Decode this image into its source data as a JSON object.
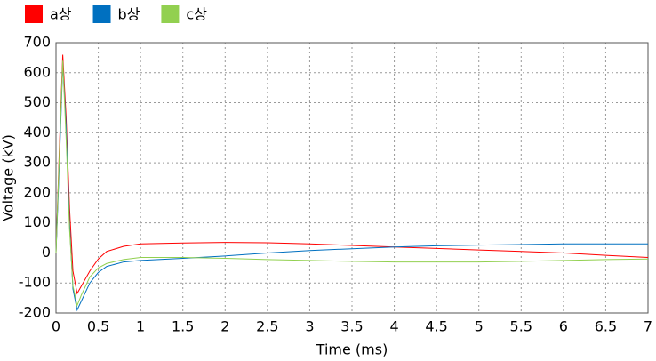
{
  "chart_data": {
    "type": "line",
    "x_label": "Time (ms)",
    "y_label": "Voltage (kV)",
    "x": [
      0,
      0.04,
      0.08,
      0.12,
      0.16,
      0.2,
      0.25,
      0.3,
      0.4,
      0.5,
      0.6,
      0.8,
      1,
      1.5,
      2,
      2.5,
      3,
      3.5,
      4,
      4.5,
      5,
      5.5,
      6,
      6.5,
      7
    ],
    "series": [
      {
        "name": "a상",
        "color": "#ff0000",
        "values": [
          0,
          350,
          660,
          450,
          150,
          -60,
          -135,
          -110,
          -60,
          -20,
          5,
          22,
          30,
          33,
          35,
          34,
          30,
          25,
          20,
          15,
          10,
          5,
          0,
          -8,
          -15
        ]
      },
      {
        "name": "b상",
        "color": "#0070c0",
        "values": [
          0,
          300,
          630,
          420,
          100,
          -120,
          -190,
          -160,
          -100,
          -65,
          -45,
          -30,
          -25,
          -18,
          -10,
          0,
          8,
          14,
          20,
          24,
          26,
          28,
          30,
          30,
          30
        ]
      },
      {
        "name": "c상",
        "color": "#92d050",
        "values": [
          0,
          330,
          640,
          380,
          80,
          -110,
          -175,
          -140,
          -80,
          -50,
          -35,
          -22,
          -15,
          -15,
          -18,
          -22,
          -25,
          -28,
          -30,
          -30,
          -30,
          -28,
          -25,
          -22,
          -20
        ]
      }
    ],
    "xlim": [
      0,
      7
    ],
    "xticks": [
      0,
      0.5,
      1,
      1.5,
      2,
      2.5,
      3,
      3.5,
      4,
      4.5,
      5,
      5.5,
      6,
      6.5,
      7
    ],
    "ylim": [
      -200,
      700
    ],
    "yticks": [
      -200,
      -100,
      0,
      100,
      200,
      300,
      400,
      500,
      600,
      700
    ],
    "grid": true,
    "legend": "top-left"
  }
}
